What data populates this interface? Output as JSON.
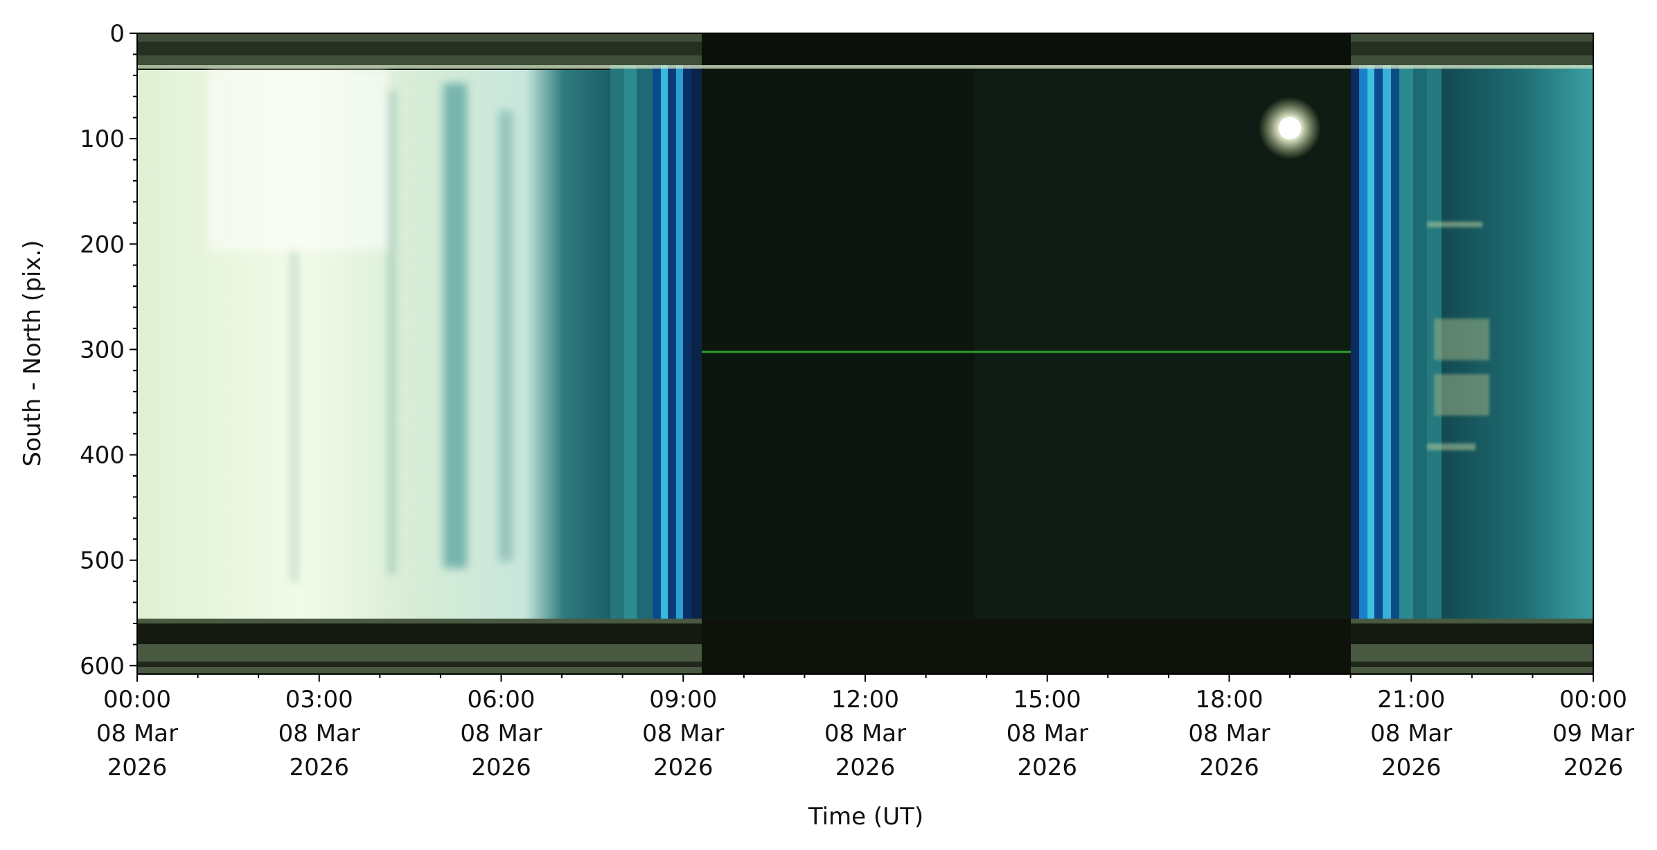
{
  "chart_data": {
    "type": "image",
    "xlabel": "Time (UT)",
    "ylabel": "South - North (pix.)",
    "xlim": [
      "2026-03-08T00:00Z",
      "2026-03-09T00:00Z"
    ],
    "xticks": [
      {
        "value": "2026-03-08T00:00Z",
        "label": [
          "00:00",
          "08 Mar",
          "2026"
        ]
      },
      {
        "value": "2026-03-08T03:00Z",
        "label": [
          "03:00",
          "08 Mar",
          "2026"
        ]
      },
      {
        "value": "2026-03-08T06:00Z",
        "label": [
          "06:00",
          "08 Mar",
          "2026"
        ]
      },
      {
        "value": "2026-03-08T09:00Z",
        "label": [
          "09:00",
          "08 Mar",
          "2026"
        ]
      },
      {
        "value": "2026-03-08T12:00Z",
        "label": [
          "12:00",
          "08 Mar",
          "2026"
        ]
      },
      {
        "value": "2026-03-08T15:00Z",
        "label": [
          "15:00",
          "08 Mar",
          "2026"
        ]
      },
      {
        "value": "2026-03-08T18:00Z",
        "label": [
          "18:00",
          "08 Mar",
          "2026"
        ]
      },
      {
        "value": "2026-03-08T21:00Z",
        "label": [
          "21:00",
          "08 Mar",
          "2026"
        ]
      },
      {
        "value": "2026-03-09T00:00Z",
        "label": [
          "00:00",
          "09 Mar",
          "2026"
        ]
      }
    ],
    "ylim": [
      0,
      608
    ],
    "y_inverted": true,
    "yticks": [
      0,
      100,
      200,
      300,
      400,
      500,
      600
    ]
  }
}
